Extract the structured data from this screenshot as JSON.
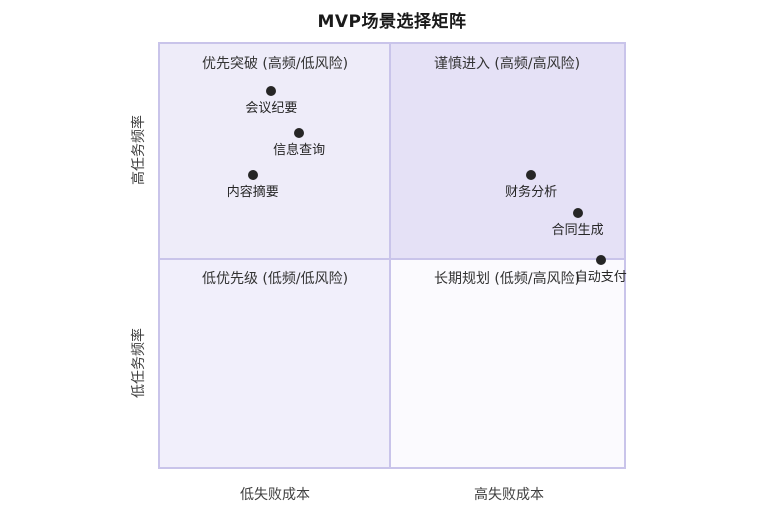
{
  "title": "MVP场景选择矩阵",
  "chart_data": {
    "type": "scatter",
    "title": "MVP场景选择矩阵",
    "xlim": [
      0,
      1
    ],
    "ylim": [
      0,
      1
    ],
    "grid": false,
    "legend_position": "none",
    "axis_labels": {
      "x_left": "低失败成本",
      "x_right": "高失败成本",
      "y_top": "高任务频率",
      "y_bottom": "低任务频率"
    },
    "quadrants": [
      {
        "position": "top-left",
        "label": "优先突破 (高频/低风险)",
        "color": "#eeecf9"
      },
      {
        "position": "top-right",
        "label": "谨慎进入 (高频/高风险)",
        "color": "#e5e1f6"
      },
      {
        "position": "bottom-left",
        "label": "低优先级 (低频/低风险)",
        "color": "#f1effb"
      },
      {
        "position": "bottom-right",
        "label": "长期规划 (低频/高风险)",
        "color": "#fbfafe"
      }
    ],
    "points": [
      {
        "label": "会议纪要",
        "x": 0.24,
        "y": 0.89
      },
      {
        "label": "信息查询",
        "x": 0.3,
        "y": 0.79
      },
      {
        "label": "内容摘要",
        "x": 0.2,
        "y": 0.69
      },
      {
        "label": "财务分析",
        "x": 0.8,
        "y": 0.69
      },
      {
        "label": "合同生成",
        "x": 0.9,
        "y": 0.6
      },
      {
        "label": "自动支付",
        "x": 0.95,
        "y": 0.49
      }
    ],
    "point_color": "#262626",
    "border_color": "#c9c4ea"
  }
}
